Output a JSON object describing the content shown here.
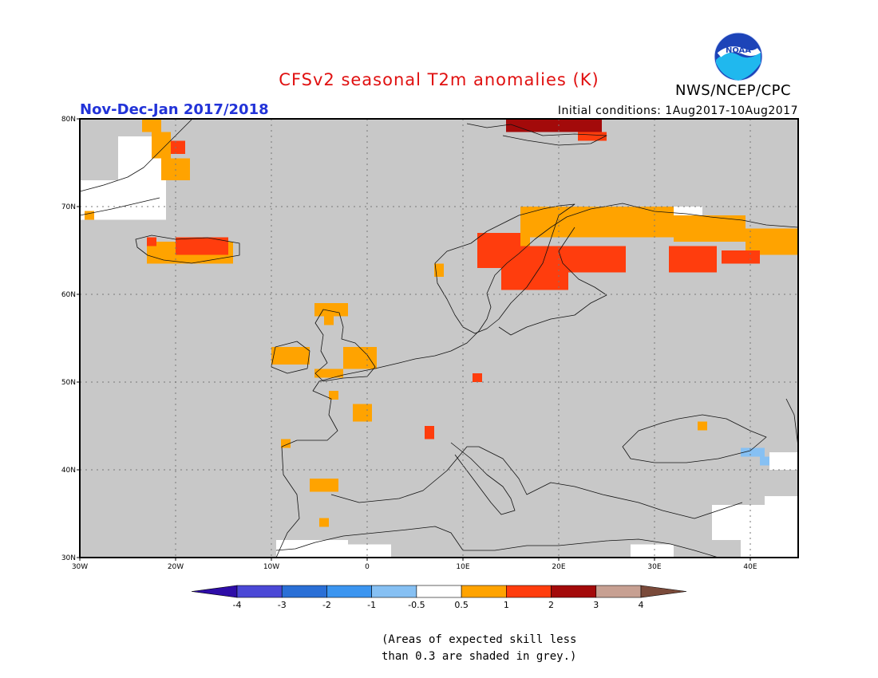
{
  "title": "CFSv2 seasonal T2m anomalies (K)",
  "period": "Nov-Dec-Jan 2017/2018",
  "initial_conditions": "Initial conditions: 1Aug2017-10Aug2017",
  "agency": "NWS/NCEP/CPC",
  "logo_text": "NOAA",
  "footnote": [
    "(Areas of expected skill less",
    "than 0.3 are shaded in grey.)"
  ],
  "colors": {
    "title": "#e01010",
    "period": "#2233d8",
    "no_skill": "#c8c8c8",
    "coast": "#111111",
    "grid": "#777777"
  },
  "map": {
    "lon_range": [
      -30,
      45
    ],
    "lat_range": [
      30,
      80
    ],
    "lon_ticks": [
      {
        "value": -30,
        "label": "30W"
      },
      {
        "value": -20,
        "label": "20W"
      },
      {
        "value": -10,
        "label": "10W"
      },
      {
        "value": 0,
        "label": "0"
      },
      {
        "value": 10,
        "label": "10E"
      },
      {
        "value": 20,
        "label": "20E"
      },
      {
        "value": 30,
        "label": "30E"
      },
      {
        "value": 40,
        "label": "40E"
      }
    ],
    "lat_ticks": [
      {
        "value": 30,
        "label": "30N"
      },
      {
        "value": 40,
        "label": "40N"
      },
      {
        "value": 50,
        "label": "50N"
      },
      {
        "value": 60,
        "label": "60N"
      },
      {
        "value": 70,
        "label": "70N"
      },
      {
        "value": 80,
        "label": "80N"
      }
    ],
    "anomaly_regions": [
      {
        "name": "Greenland east coast",
        "class": "0.5-1",
        "lon": [
          -23.5,
          -21.5
        ],
        "lat": [
          78.5,
          80
        ]
      },
      {
        "name": "Greenland east coast",
        "class": "0.5-1",
        "lon": [
          -22.5,
          -20.5
        ],
        "lat": [
          75.5,
          78.5
        ]
      },
      {
        "name": "Greenland east coast",
        "class": "0.5-1",
        "lon": [
          -21.5,
          -18.5
        ],
        "lat": [
          73,
          75.5
        ]
      },
      {
        "name": "Greenland east coast",
        "class": "1-2",
        "lon": [
          -20.5,
          -19
        ],
        "lat": [
          76,
          77.5
        ]
      },
      {
        "name": "Scoresby coast",
        "class": "0.5-1",
        "lon": [
          -29.5,
          -28.5
        ],
        "lat": [
          68.5,
          69.5
        ]
      },
      {
        "name": "Iceland",
        "class": "0.5-1",
        "lon": [
          -23,
          -14
        ],
        "lat": [
          63.5,
          66
        ]
      },
      {
        "name": "Iceland",
        "class": "1-2",
        "lon": [
          -20,
          -14.5
        ],
        "lat": [
          64.5,
          66.5
        ]
      },
      {
        "name": "Iceland",
        "class": "1-2",
        "lon": [
          -23,
          -22
        ],
        "lat": [
          65.5,
          66.5
        ]
      },
      {
        "name": "Svalbard",
        "class": "2-3",
        "lon": [
          14.5,
          24.5
        ],
        "lat": [
          78.5,
          80
        ]
      },
      {
        "name": "Svalbard",
        "class": "1-2",
        "lon": [
          22,
          25
        ],
        "lat": [
          77.5,
          78.5
        ]
      },
      {
        "name": "Fennoscandia",
        "class": "0.5-1",
        "lon": [
          16,
          32
        ],
        "lat": [
          66.5,
          70
        ]
      },
      {
        "name": "Fennoscandia",
        "class": "0.5-1",
        "lon": [
          32,
          39.5
        ],
        "lat": [
          66,
          69
        ]
      },
      {
        "name": "Fennoscandia",
        "class": "0.5-1",
        "lon": [
          39.5,
          45
        ],
        "lat": [
          64.5,
          67.5
        ]
      },
      {
        "name": "Fennoscandia",
        "class": "0.5-1",
        "lon": [
          15,
          17
        ],
        "lat": [
          64.5,
          67
        ]
      },
      {
        "name": "Norway coast",
        "class": "1-2",
        "lon": [
          11.5,
          16
        ],
        "lat": [
          63,
          67
        ]
      },
      {
        "name": "Sweden",
        "class": "1-2",
        "lon": [
          14,
          21
        ],
        "lat": [
          60.5,
          65.5
        ]
      },
      {
        "name": "Finland",
        "class": "1-2",
        "lon": [
          21,
          27
        ],
        "lat": [
          62.5,
          65.5
        ]
      },
      {
        "name": "Kola",
        "class": "1-2",
        "lon": [
          31.5,
          36.5
        ],
        "lat": [
          62.5,
          65.5
        ]
      },
      {
        "name": "Arkhangelsk",
        "class": "1-2",
        "lon": [
          37,
          41
        ],
        "lat": [
          63.5,
          65
        ]
      },
      {
        "name": "Norway coast",
        "class": "0.5-1",
        "lon": [
          7,
          8
        ],
        "lat": [
          62,
          63.5
        ]
      },
      {
        "name": "Scotland",
        "class": "0.5-1",
        "lon": [
          -5.5,
          -2
        ],
        "lat": [
          57.5,
          59
        ]
      },
      {
        "name": "Scotland",
        "class": "0.5-1",
        "lon": [
          -4.5,
          -3.5
        ],
        "lat": [
          56.5,
          57.5
        ]
      },
      {
        "name": "Ireland",
        "class": "0.5-1",
        "lon": [
          -10,
          -6
        ],
        "lat": [
          52,
          54
        ]
      },
      {
        "name": "England",
        "class": "0.5-1",
        "lon": [
          -2.5,
          1
        ],
        "lat": [
          51.5,
          54
        ]
      },
      {
        "name": "England",
        "class": "0.5-1",
        "lon": [
          -5.5,
          -2.5
        ],
        "lat": [
          50.5,
          51.5
        ]
      },
      {
        "name": "France",
        "class": "0.5-1",
        "lon": [
          -1.5,
          0.5
        ],
        "lat": [
          45.5,
          47.5
        ]
      },
      {
        "name": "France",
        "class": "0.5-1",
        "lon": [
          -4,
          -3
        ],
        "lat": [
          48,
          49
        ]
      },
      {
        "name": "Germany",
        "class": "1-2",
        "lon": [
          11,
          12
        ],
        "lat": [
          50,
          51
        ]
      },
      {
        "name": "Alps",
        "class": "1-2",
        "lon": [
          6,
          7
        ],
        "lat": [
          43.5,
          45
        ]
      },
      {
        "name": "Galicia",
        "class": "0.5-1",
        "lon": [
          -9,
          -8
        ],
        "lat": [
          42.5,
          43.5
        ]
      },
      {
        "name": "Spain",
        "class": "0.5-1",
        "lon": [
          -6,
          -3
        ],
        "lat": [
          37.5,
          39
        ]
      },
      {
        "name": "Spain",
        "class": "0.5-1",
        "lon": [
          -5,
          -4
        ],
        "lat": [
          33.5,
          34.5
        ]
      },
      {
        "name": "Crimea",
        "class": "0.5-1",
        "lon": [
          34.5,
          35.5
        ],
        "lat": [
          44.5,
          45.5
        ]
      }
    ],
    "near_normal_regions": [
      {
        "lon": [
          -26,
          -21
        ],
        "lat": [
          73,
          78
        ]
      },
      {
        "lon": [
          -30,
          -21
        ],
        "lat": [
          68.5,
          73
        ]
      },
      {
        "lon": [
          30,
          35
        ],
        "lat": [
          69,
          70
        ]
      },
      {
        "lon": [
          42,
          45
        ],
        "lat": [
          40,
          42
        ]
      },
      {
        "lon": [
          -9.5,
          -2
        ],
        "lat": [
          30,
          32
        ]
      },
      {
        "lon": [
          -2,
          2.5
        ],
        "lat": [
          30,
          31.5
        ]
      },
      {
        "lon": [
          27.5,
          32
        ],
        "lat": [
          30,
          31.5
        ]
      },
      {
        "lon": [
          36,
          45
        ],
        "lat": [
          32,
          36
        ]
      },
      {
        "lon": [
          39,
          45
        ],
        "lat": [
          30,
          32
        ]
      },
      {
        "lon": [
          41.5,
          45
        ],
        "lat": [
          36,
          37
        ]
      }
    ],
    "below_normal_regions": [
      {
        "class": "-0.5--1",
        "lon": [
          39,
          41.5
        ],
        "lat": [
          41.5,
          42.5
        ]
      },
      {
        "class": "-0.5--1",
        "lon": [
          41,
          42
        ],
        "lat": [
          40.5,
          41.5
        ]
      }
    ]
  },
  "colorbar": {
    "boundaries": [
      "-4",
      "-3",
      "-2",
      "-1",
      "-0.5",
      "0.5",
      "1",
      "2",
      "3",
      "4"
    ],
    "colors": [
      "#2e0da8",
      "#4b48d6",
      "#2a6fd6",
      "#3b95f0",
      "#86c0f3",
      "#ffffff",
      "#ffa300",
      "#ff3d0d",
      "#a30a0a",
      "#c7a092",
      "#7a4a3a"
    ]
  }
}
